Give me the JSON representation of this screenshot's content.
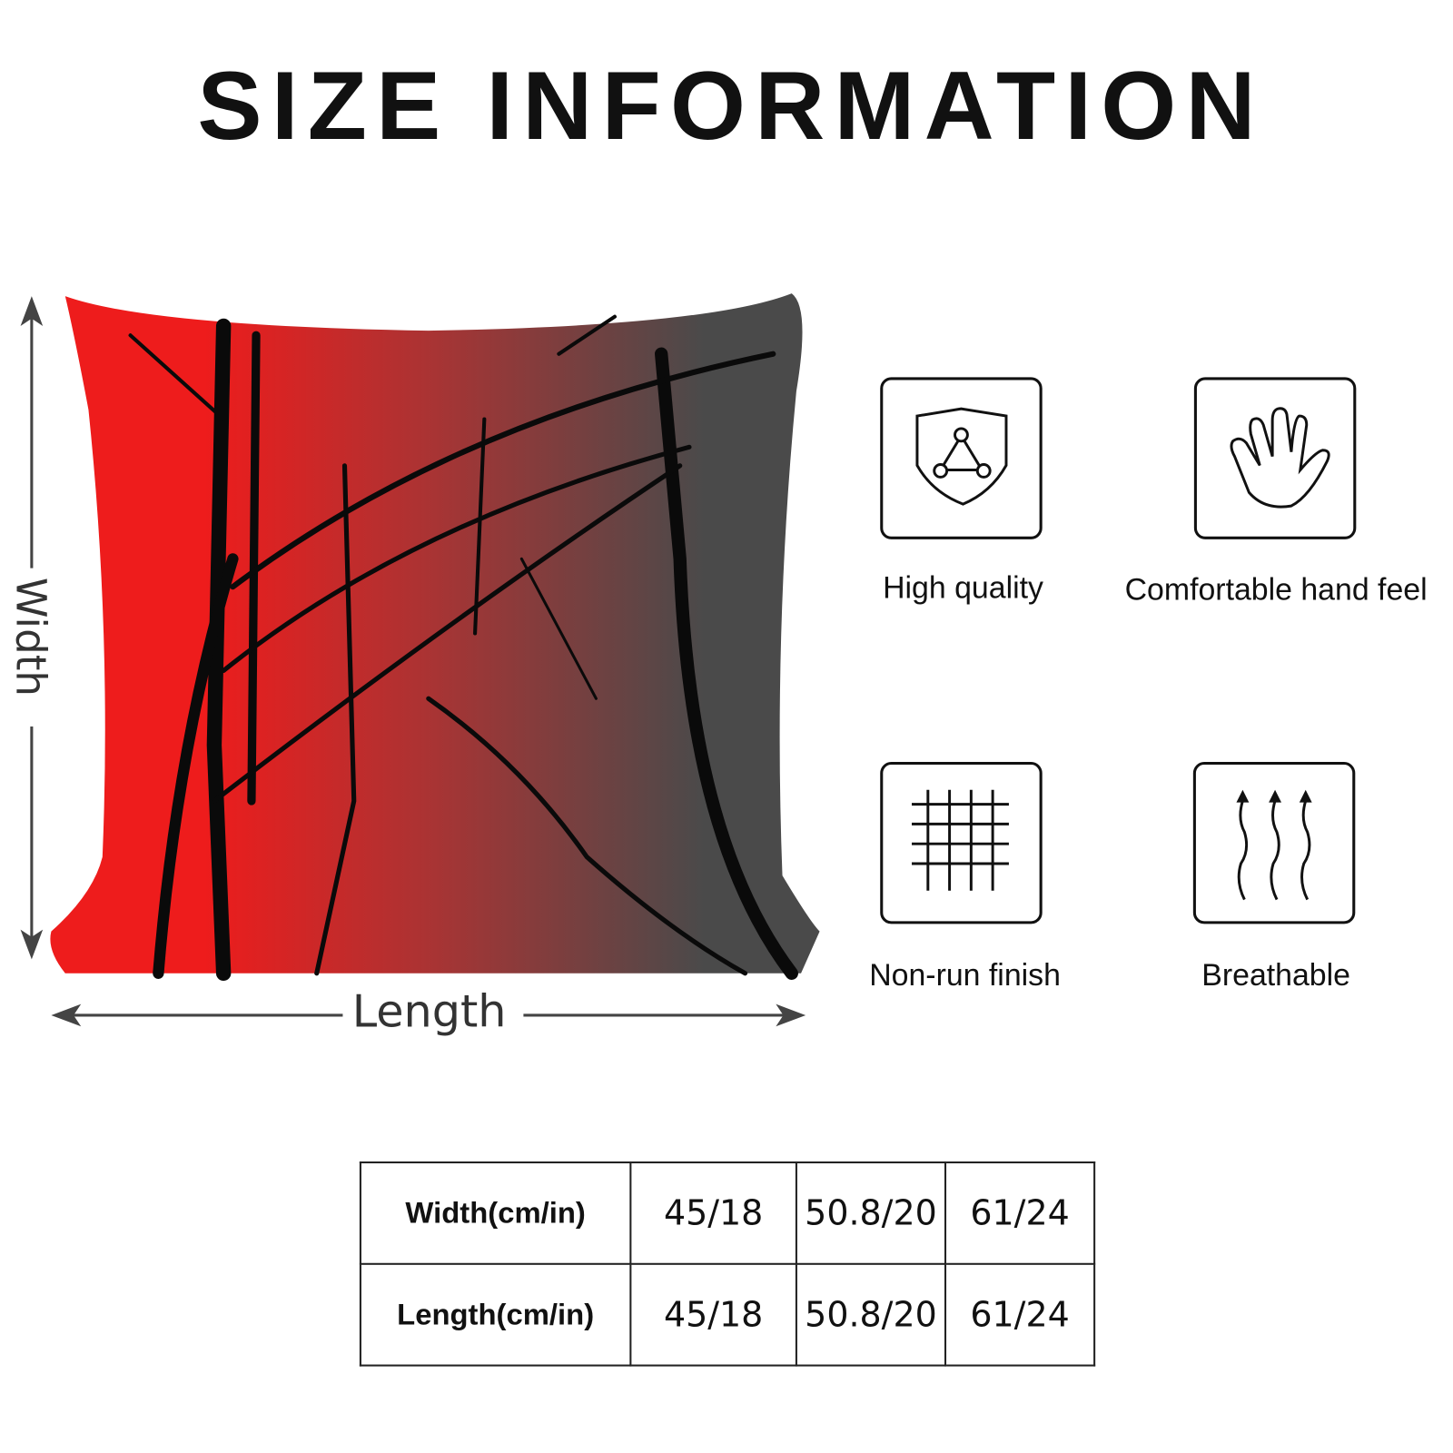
{
  "title": "SIZE INFORMATION",
  "dimensions": {
    "width_label": "Width",
    "length_label": "Length"
  },
  "pillow_colors": {
    "left": "#ee1c1c",
    "right": "#4a4a4a",
    "branches": "#0a0a0a"
  },
  "features": [
    {
      "label": "High quality",
      "icon": "shield-triangle-icon"
    },
    {
      "label": "Comfortable hand feel",
      "icon": "hand-icon"
    },
    {
      "label": "Non-run finish",
      "icon": "grid-mesh-icon"
    },
    {
      "label": "Breathable",
      "icon": "wavy-arrows-icon"
    }
  ],
  "size_table": {
    "rows": [
      {
        "header": "Width(cm/in)",
        "values": [
          "45/18",
          "50.8/20",
          "61/24"
        ]
      },
      {
        "header": "Length(cm/in)",
        "values": [
          "45/18",
          "50.8/20",
          "61/24"
        ]
      }
    ]
  }
}
